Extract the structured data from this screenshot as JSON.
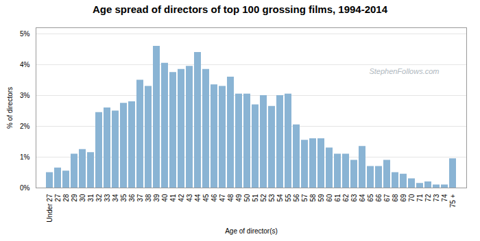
{
  "chart_data": {
    "type": "bar",
    "title": "Age spread of directors of top 100 grossing films, 1994-2014",
    "xlabel": "Age of director(s)",
    "ylabel": "% of directors",
    "annotations": [
      "StephenFollows.com"
    ],
    "color": "#8ab4d4",
    "categories": [
      "Under 27",
      "27",
      "28",
      "29",
      "30",
      "31",
      "32",
      "33",
      "34",
      "35",
      "36",
      "37",
      "38",
      "39",
      "40",
      "41",
      "42",
      "43",
      "44",
      "45",
      "46",
      "47",
      "48",
      "49",
      "50",
      "51",
      "52",
      "53",
      "54",
      "55",
      "56",
      "57",
      "58",
      "59",
      "60",
      "61",
      "62",
      "63",
      "64",
      "65",
      "66",
      "67",
      "68",
      "69",
      "70",
      "71",
      "72",
      "73",
      "74",
      "75 +"
    ],
    "values": [
      0.5,
      0.65,
      0.55,
      1.1,
      1.25,
      1.15,
      2.45,
      2.6,
      2.5,
      2.75,
      2.8,
      3.5,
      3.3,
      4.6,
      4.05,
      3.75,
      3.85,
      3.95,
      4.4,
      3.85,
      3.35,
      3.3,
      3.6,
      3.05,
      3.05,
      2.7,
      3.0,
      2.65,
      3.0,
      3.05,
      2.05,
      1.55,
      1.6,
      1.6,
      1.3,
      1.1,
      1.1,
      0.9,
      1.35,
      0.7,
      0.7,
      0.9,
      0.5,
      0.45,
      0.3,
      0.15,
      0.2,
      0.1,
      0.1,
      0.95
    ],
    "ylim": [
      0,
      5.2
    ],
    "yticks": [
      {
        "value": 0,
        "label": "0%"
      },
      {
        "value": 1,
        "label": "1%"
      },
      {
        "value": 2,
        "label": "2%"
      },
      {
        "value": 3,
        "label": "3%"
      },
      {
        "value": 4,
        "label": "4%"
      },
      {
        "value": 5,
        "label": "5%"
      }
    ],
    "grid": true
  }
}
